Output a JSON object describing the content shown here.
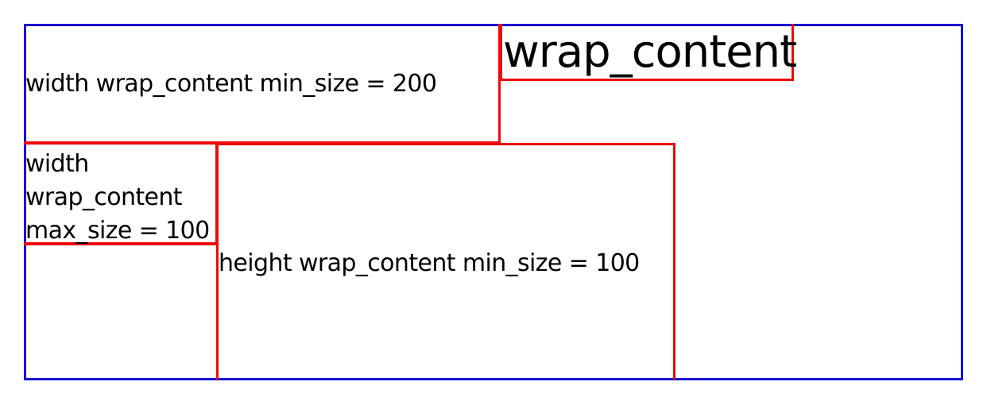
{
  "colors": {
    "container_border": "#1a10d6",
    "box_border": "#ee0a0a",
    "text": "#000000",
    "background": "#ffffff"
  },
  "boxes": {
    "width_min": {
      "label": "width wrap_content min_size = 200"
    },
    "wrap": {
      "label": "wrap_content"
    },
    "width_max": {
      "lines": [
        "width",
        "wrap_content",
        "max_size = 100"
      ]
    },
    "height_min": {
      "label": "height wrap_content min_size = 100"
    }
  }
}
